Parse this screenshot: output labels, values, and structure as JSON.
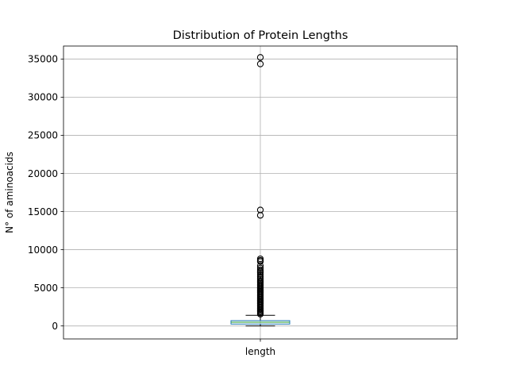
{
  "chart_data": {
    "type": "box",
    "title": "Distribution of Protein Lengths",
    "xlabel": "",
    "ylabel": "N° of aminoacids",
    "categories": [
      "length"
    ],
    "ylim": [
      -1700,
      36700
    ],
    "yticks": [
      0,
      5000,
      10000,
      15000,
      20000,
      25000,
      30000,
      35000
    ],
    "ytick_labels": [
      "0",
      "5000",
      "10000",
      "15000",
      "20000",
      "25000",
      "30000",
      "35000"
    ],
    "grid": true,
    "box": {
      "whisker_low": 2,
      "q1": 250,
      "median": 480,
      "q3": 700,
      "whisker_high": 1400
    },
    "outliers": [
      35213,
      34350,
      15210,
      14507,
      8800,
      8600,
      8450,
      7900,
      7600,
      7350,
      7150,
      7000,
      6750,
      6500,
      6300,
      6100,
      5900,
      5750,
      5600,
      5450,
      5300,
      5150,
      5000,
      4850,
      4700,
      4550,
      4400,
      4250,
      4100,
      3950,
      3800,
      3650,
      3500,
      3350,
      3200,
      3050,
      2900,
      2750,
      2600,
      2450,
      2300,
      2150,
      2000,
      1850,
      1700,
      1550
    ],
    "colors": {
      "box": "#1f77b4",
      "median": "#2ca02c",
      "whisker": "#000000",
      "outlier": "#000000"
    }
  }
}
